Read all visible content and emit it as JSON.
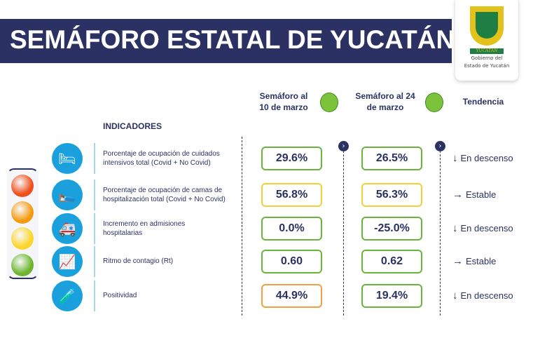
{
  "header": {
    "title": "SEMÁFORO ESTATAL DE YUCATÁN",
    "logo_text": "YUCATAN",
    "logo_caption_1": "Gobierno del",
    "logo_caption_2": "Estado de Yucatán"
  },
  "columns": {
    "col1_line1": "Semáforo al",
    "col1_line2": "10 de marzo",
    "col1_color": "#7cc23a",
    "col2_line1": "Semáforo al 24",
    "col2_line2": "de marzo",
    "col2_color": "#7cc23a",
    "trend": "Tendencia",
    "indicators": "INDICADORES"
  },
  "traffic_light": [
    "#f04e1c",
    "#f59a10",
    "#fbd52a",
    "#6cb52d"
  ],
  "rows": [
    {
      "icon": "icu-bed-icon",
      "l1": "Porcentaje de ocupación de cuidados",
      "l2": "intensivos total (Covid + No Covid)",
      "v1": "29.6%",
      "c1": "#6ab43e",
      "v2": "26.5%",
      "c2": "#6ab43e",
      "arrow": "↓",
      "trend": "En descenso"
    },
    {
      "icon": "hospital-bed-icon",
      "l1": "Porcentaje de ocupación de camas de",
      "l2": "hospitalización total (Covid + No Covid)",
      "v1": "56.8%",
      "c1": "#f4cf3a",
      "v2": "56.3%",
      "c2": "#f4cf3a",
      "arrow": "→",
      "trend": "Estable"
    },
    {
      "icon": "ambulance-icon",
      "l1": "Incremento en admisiones",
      "l2": "hospitalarias",
      "v1": "0.0%",
      "c1": "#6ab43e",
      "v2": "-25.0%",
      "c2": "#6ab43e",
      "arrow": "↓",
      "trend": "En descenso"
    },
    {
      "icon": "chart-icon",
      "l1": "Ritmo de contagio (Rt)",
      "l2": "",
      "v1": "0.60",
      "c1": "#6ab43e",
      "v2": "0.62",
      "c2": "#6ab43e",
      "arrow": "→",
      "trend": "Estable"
    },
    {
      "icon": "swab-icon",
      "l1": "Positividad",
      "l2": "",
      "v1": "44.9%",
      "c1": "#f0a040",
      "v2": "19.4%",
      "c2": "#6ab43e",
      "arrow": "↓",
      "trend": "En descenso"
    }
  ]
}
